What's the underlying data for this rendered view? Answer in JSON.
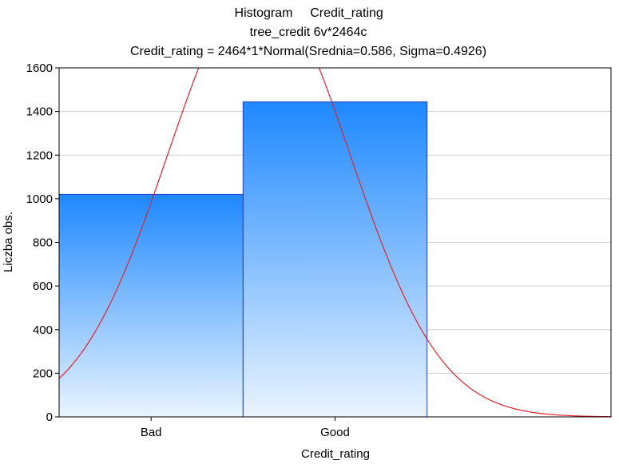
{
  "chart_data": {
    "type": "bar",
    "title": "Histogram",
    "variable": "Credit_rating",
    "subtitle": "tree_credit 6v*2464c",
    "formula": "Credit_rating = 2464*1*Normal(Srednia=0.586, Sigma=0.4926)",
    "xlabel": "Credit_rating",
    "ylabel": "Liczba obs.",
    "categories": [
      "Bad",
      "Good"
    ],
    "values": [
      1020,
      1444
    ],
    "ylim": [
      0,
      1600
    ],
    "yticks": [
      0,
      200,
      400,
      600,
      800,
      1000,
      1200,
      1400,
      1600
    ],
    "grid": true,
    "normal_fit": {
      "n": 2464,
      "mean": 0.586,
      "sigma": 0.4926
    },
    "colors": {
      "bar_top": "#1e88ff",
      "bar_bottom": "#eaf4ff",
      "bar_edge": "#1f3fc7",
      "curve": "#e8202a"
    }
  }
}
